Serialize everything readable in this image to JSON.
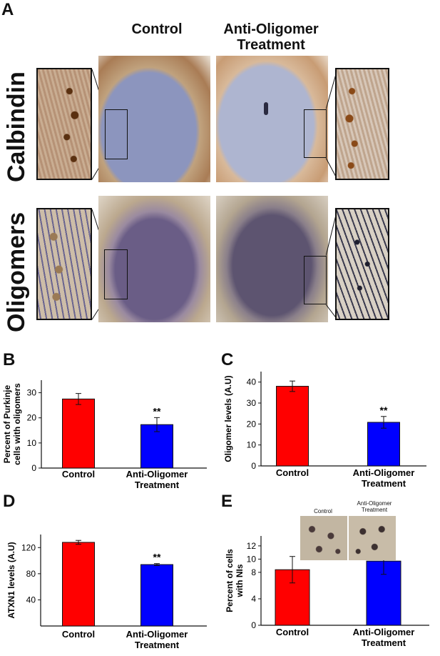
{
  "panel_a": {
    "letter": "A",
    "col_control": "Control",
    "col_treatment": "Anti-Oligomer Treatment",
    "row_calbindin": "Calbindin",
    "row_oligomers": "Oligomers",
    "colors": {
      "calbindin_bg": "#c89c74",
      "oligomer_bg": "#b9a48a",
      "granular": "#7a83b0",
      "purple": "#4a3f6e"
    }
  },
  "chart_data": [
    {
      "panel": "B",
      "type": "bar",
      "categories": [
        "Control",
        "Anti-Oligomer\nTreatment"
      ],
      "values": [
        27.5,
        17.3
      ],
      "errors": [
        2.2,
        2.8
      ],
      "colors": [
        "#ff0000",
        "#0000ff"
      ],
      "significance": [
        "",
        "**"
      ],
      "ylabel": "Percent of Purkinje\ncells with oligomers",
      "ylim": [
        0,
        35
      ],
      "yticks": [
        0,
        10,
        20,
        30
      ]
    },
    {
      "panel": "C",
      "type": "bar",
      "categories": [
        "Control",
        "Anti-Oligomer\nTreatment"
      ],
      "values": [
        38,
        20.8
      ],
      "errors": [
        2.5,
        2.8
      ],
      "colors": [
        "#ff0000",
        "#0000ff"
      ],
      "significance": [
        "",
        "**"
      ],
      "ylabel": "Oligomer levels (A.U)",
      "ylim": [
        0,
        45
      ],
      "yticks": [
        0,
        10,
        20,
        30,
        40
      ]
    },
    {
      "panel": "D",
      "type": "bar",
      "categories": [
        "Control",
        "Anti-Oligomer\nTreatment"
      ],
      "values": [
        128,
        94
      ],
      "errors": [
        3,
        1.5
      ],
      "colors": [
        "#ff0000",
        "#0000ff"
      ],
      "significance": [
        "",
        "**"
      ],
      "ylabel": "ATXN1 levels (A.U)",
      "ylim": [
        0,
        140
      ],
      "yticks": [
        40,
        80,
        120
      ]
    },
    {
      "panel": "E",
      "type": "bar",
      "categories": [
        "Control",
        "Anti-Oligomer\nTreatment"
      ],
      "values": [
        8.4,
        9.7
      ],
      "errors": [
        2.0,
        2.0
      ],
      "colors": [
        "#ff0000",
        "#0000ff"
      ],
      "significance": [
        "",
        ""
      ],
      "ylabel": "Percent of cells\nwith NIs",
      "ylim": [
        0,
        13.5
      ],
      "yticks": [
        0,
        4,
        8,
        10,
        12
      ],
      "inset_labels": [
        "Control",
        "Anti-Oligomer\nTreatment"
      ]
    }
  ]
}
